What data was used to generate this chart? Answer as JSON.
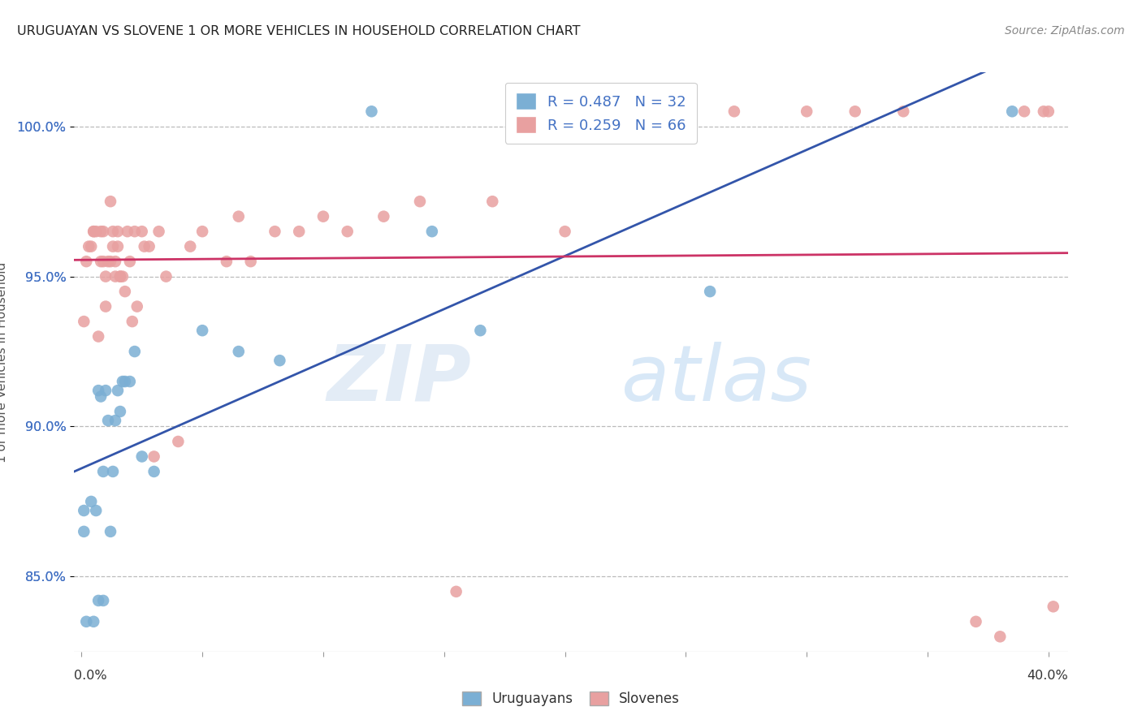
{
  "title": "URUGUAYAN VS SLOVENE 1 OR MORE VEHICLES IN HOUSEHOLD CORRELATION CHART",
  "source": "Source: ZipAtlas.com",
  "ylabel": "1 or more Vehicles in Household",
  "ymin": 82.5,
  "ymax": 101.8,
  "xmin": -0.003,
  "xmax": 0.408,
  "uruguayan_R": 0.487,
  "uruguayan_N": 32,
  "slovene_R": 0.259,
  "slovene_N": 66,
  "uruguayan_color": "#7bafd4",
  "slovene_color": "#e8a0a0",
  "uruguayan_line_color": "#3355aa",
  "slovene_line_color": "#cc3366",
  "legend_uruguayan_label": "Uruguayans",
  "legend_slovene_label": "Slovenes",
  "grid_color": "#bbbbbb",
  "background_color": "#ffffff",
  "ytick_vals": [
    85.0,
    90.0,
    95.0,
    100.0
  ],
  "ytick_labels": [
    "85.0%",
    "90.0%",
    "95.0%",
    "100.0%"
  ],
  "uruguayan_x": [
    0.001,
    0.001,
    0.002,
    0.004,
    0.005,
    0.006,
    0.007,
    0.007,
    0.008,
    0.009,
    0.009,
    0.01,
    0.011,
    0.012,
    0.013,
    0.014,
    0.015,
    0.016,
    0.017,
    0.018,
    0.02,
    0.022,
    0.025,
    0.03,
    0.05,
    0.065,
    0.082,
    0.12,
    0.145,
    0.165,
    0.26,
    0.385
  ],
  "uruguayan_y": [
    87.2,
    86.5,
    83.5,
    87.5,
    83.5,
    87.2,
    91.2,
    84.2,
    91.0,
    84.2,
    88.5,
    91.2,
    90.2,
    86.5,
    88.5,
    90.2,
    91.2,
    90.5,
    91.5,
    91.5,
    91.5,
    92.5,
    89.0,
    88.5,
    93.2,
    92.5,
    92.2,
    100.5,
    96.5,
    93.2,
    94.5,
    100.5
  ],
  "slovene_x": [
    0.001,
    0.002,
    0.003,
    0.004,
    0.005,
    0.005,
    0.006,
    0.007,
    0.008,
    0.008,
    0.009,
    0.009,
    0.01,
    0.01,
    0.011,
    0.012,
    0.012,
    0.013,
    0.013,
    0.014,
    0.014,
    0.015,
    0.015,
    0.016,
    0.016,
    0.017,
    0.018,
    0.019,
    0.02,
    0.021,
    0.022,
    0.023,
    0.025,
    0.026,
    0.028,
    0.03,
    0.032,
    0.035,
    0.04,
    0.045,
    0.05,
    0.06,
    0.065,
    0.07,
    0.08,
    0.09,
    0.1,
    0.11,
    0.125,
    0.14,
    0.155,
    0.17,
    0.2,
    0.21,
    0.235,
    0.25,
    0.27,
    0.3,
    0.32,
    0.34,
    0.37,
    0.38,
    0.39,
    0.398,
    0.4,
    0.402
  ],
  "slovene_y": [
    93.5,
    95.5,
    96.0,
    96.0,
    96.5,
    96.5,
    96.5,
    93.0,
    95.5,
    96.5,
    95.5,
    96.5,
    94.0,
    95.0,
    95.5,
    97.5,
    95.5,
    96.0,
    96.5,
    95.0,
    95.5,
    96.0,
    96.5,
    95.0,
    95.0,
    95.0,
    94.5,
    96.5,
    95.5,
    93.5,
    96.5,
    94.0,
    96.5,
    96.0,
    96.0,
    89.0,
    96.5,
    95.0,
    89.5,
    96.0,
    96.5,
    95.5,
    97.0,
    95.5,
    96.5,
    96.5,
    97.0,
    96.5,
    97.0,
    97.5,
    84.5,
    97.5,
    96.5,
    100.5,
    100.5,
    100.5,
    100.5,
    100.5,
    100.5,
    100.5,
    83.5,
    83.0,
    100.5,
    100.5,
    100.5,
    84.0
  ]
}
